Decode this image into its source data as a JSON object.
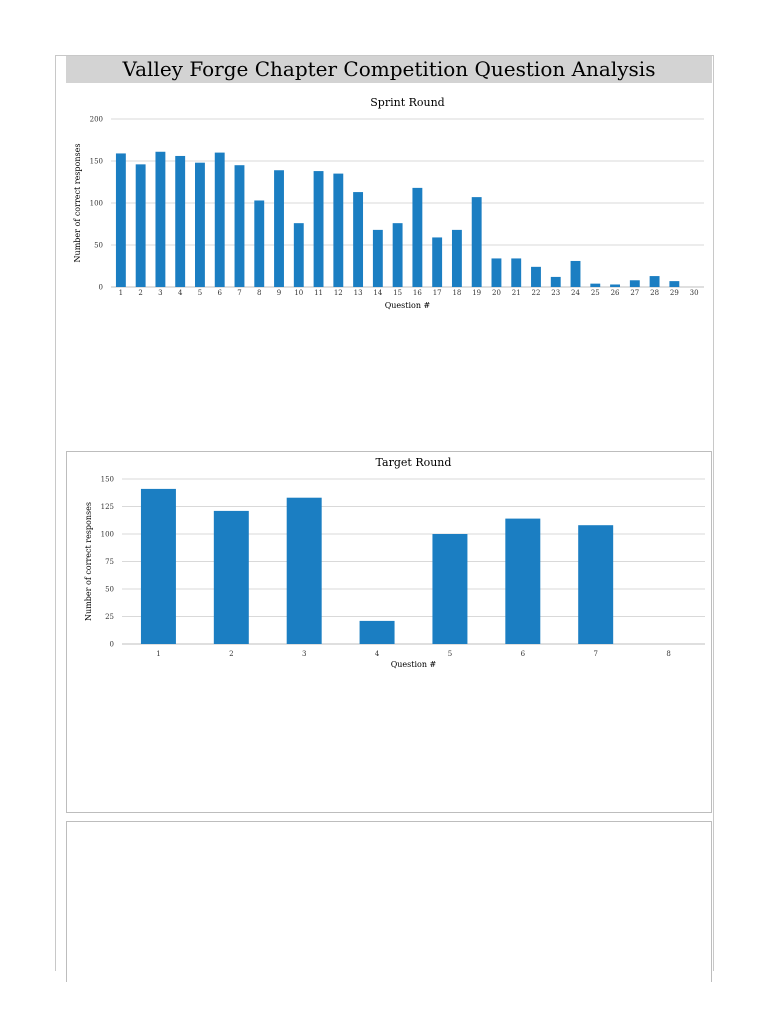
{
  "page_title": "Valley Forge Chapter Competition Question Analysis",
  "colors": {
    "bar": "#1b7ec2",
    "grid": "#d9d9d9",
    "title_bg": "#d3d3d3"
  },
  "chart_data": [
    {
      "id": "sprint",
      "type": "bar",
      "title": "Sprint Round",
      "xlabel": "Question #",
      "ylabel": "Number of correct responses",
      "ylim": [
        0,
        200
      ],
      "yticks": [
        0,
        50,
        100,
        150,
        200
      ],
      "grid": true,
      "categories": [
        "1",
        "2",
        "3",
        "4",
        "5",
        "6",
        "7",
        "8",
        "9",
        "10",
        "11",
        "12",
        "13",
        "14",
        "15",
        "16",
        "17",
        "18",
        "19",
        "20",
        "21",
        "22",
        "23",
        "24",
        "25",
        "26",
        "27",
        "28",
        "29",
        "30"
      ],
      "values": [
        159,
        146,
        161,
        156,
        148,
        160,
        145,
        103,
        139,
        76,
        138,
        135,
        113,
        68,
        76,
        118,
        59,
        68,
        107,
        34,
        34,
        24,
        12,
        31,
        4,
        3,
        8,
        13,
        7,
        0
      ]
    },
    {
      "id": "target",
      "type": "bar",
      "title": "Target Round",
      "xlabel": "Question #",
      "ylabel": "Number of correct responses",
      "ylim": [
        0,
        150
      ],
      "yticks": [
        0,
        25,
        50,
        75,
        100,
        125,
        150
      ],
      "grid": true,
      "categories": [
        "1",
        "2",
        "3",
        "4",
        "5",
        "6",
        "7",
        "8"
      ],
      "values": [
        141,
        121,
        133,
        21,
        100,
        114,
        108,
        0
      ]
    }
  ]
}
